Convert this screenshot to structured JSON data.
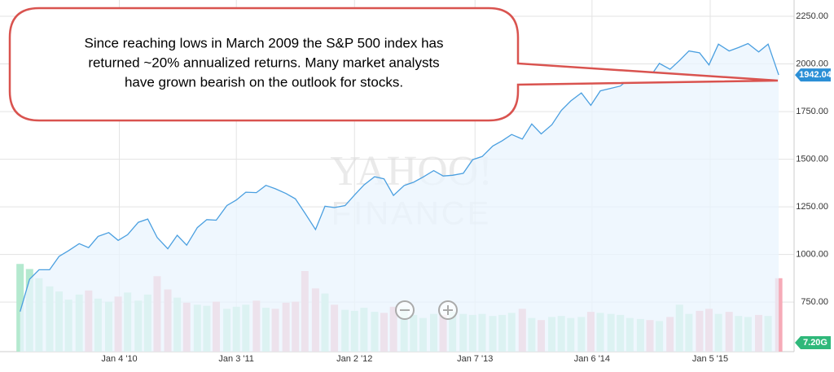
{
  "chart_data": {
    "type": "line",
    "annotation": [
      "Since reaching lows in March 2009 the S&P 500 index has",
      "returned  ~20% annualized returns.  Many market analysts",
      "have grown bearish on the outlook for stocks."
    ],
    "watermark": [
      "YAHOO!",
      "FINANCE"
    ],
    "x": [
      2009.17,
      2009.25,
      2009.33,
      2009.42,
      2009.5,
      2009.58,
      2009.67,
      2009.75,
      2009.83,
      2009.92,
      2010.0,
      2010.08,
      2010.17,
      2010.25,
      2010.33,
      2010.42,
      2010.5,
      2010.58,
      2010.67,
      2010.75,
      2010.83,
      2010.92,
      2011.0,
      2011.08,
      2011.17,
      2011.25,
      2011.33,
      2011.42,
      2011.5,
      2011.58,
      2011.67,
      2011.75,
      2011.83,
      2011.92,
      2012.0,
      2012.08,
      2012.17,
      2012.25,
      2012.33,
      2012.42,
      2012.5,
      2012.58,
      2012.67,
      2012.75,
      2012.83,
      2012.92,
      2013.0,
      2013.08,
      2013.17,
      2013.25,
      2013.33,
      2013.42,
      2013.5,
      2013.58,
      2013.67,
      2013.75,
      2013.83,
      2013.92,
      2014.0,
      2014.08,
      2014.17,
      2014.25,
      2014.33,
      2014.42,
      2014.5,
      2014.58,
      2014.67,
      2014.75,
      2014.83,
      2014.92,
      2015.0,
      2015.08,
      2015.17,
      2015.25,
      2015.33,
      2015.42,
      2015.5,
      2015.59
    ],
    "series": [
      {
        "color": "#4a9fe0",
        "fill": "#e9f4fd",
        "values": [
          700,
          870,
          920,
          920,
          990,
          1020,
          1057,
          1036,
          1095,
          1115,
          1074,
          1104,
          1169,
          1186,
          1089,
          1030,
          1101,
          1049,
          1141,
          1183,
          1180,
          1257,
          1286,
          1327,
          1325,
          1363,
          1345,
          1320,
          1292,
          1218,
          1131,
          1253,
          1246,
          1257,
          1312,
          1365,
          1408,
          1397,
          1310,
          1362,
          1379,
          1406,
          1440,
          1412,
          1416,
          1426,
          1498,
          1514,
          1569,
          1597,
          1630,
          1606,
          1685,
          1633,
          1681,
          1756,
          1806,
          1848,
          1783,
          1859,
          1872,
          1884,
          1924,
          1960,
          1931,
          2003,
          1972,
          2018,
          2068,
          2059,
          1995,
          2104,
          2068,
          2086,
          2107,
          2063,
          2104,
          1942.04
        ]
      }
    ],
    "volume": {
      "up_color": "#b4e9cf",
      "down_color": "#f6abb8",
      "values": [
        8.6,
        8.1,
        7.2,
        6.4,
        5.9,
        5.1,
        5.6,
        6.0,
        5.2,
        4.9,
        5.4,
        5.8,
        5.0,
        5.6,
        7.4,
        6.1,
        5.3,
        4.8,
        4.6,
        4.5,
        4.9,
        4.2,
        4.4,
        4.6,
        5.0,
        4.3,
        4.2,
        4.8,
        4.9,
        7.9,
        6.2,
        5.7,
        4.6,
        4.1,
        4.0,
        4.3,
        3.9,
        3.8,
        4.4,
        4.3,
        3.6,
        3.3,
        3.7,
        3.6,
        3.9,
        3.7,
        3.6,
        3.7,
        3.5,
        3.6,
        3.8,
        4.2,
        3.3,
        3.1,
        3.4,
        3.5,
        3.3,
        3.4,
        3.9,
        3.8,
        3.7,
        3.6,
        3.3,
        3.2,
        3.1,
        3.0,
        3.4,
        4.6,
        3.7,
        4.0,
        4.2,
        3.7,
        3.9,
        3.5,
        3.4,
        3.6,
        3.5,
        7.2
      ]
    },
    "volume_label": "7.20G",
    "y2lim": [
      0,
      34
    ],
    "xlim": [
      2009.0,
      2015.72
    ],
    "xticks": [
      {
        "value": 2010.01,
        "label": "Jan 4 '10"
      },
      {
        "value": 2011.0,
        "label": "Jan 3 '11"
      },
      {
        "value": 2012.0,
        "label": "Jan 2 '12"
      },
      {
        "value": 2013.02,
        "label": "Jan 7 '13"
      },
      {
        "value": 2014.01,
        "label": "Jan 6 '14"
      },
      {
        "value": 2015.01,
        "label": "Jan 5 '15"
      }
    ],
    "ylim": [
      490,
      2310
    ],
    "yticks": [
      {
        "value": 750,
        "label": "750.00"
      },
      {
        "value": 1000,
        "label": "1000.00"
      },
      {
        "value": 1250,
        "label": "1250.00"
      },
      {
        "value": 1500,
        "label": "1500.00"
      },
      {
        "value": 1750,
        "label": "1750.00"
      },
      {
        "value": 2000,
        "label": "2000.00"
      },
      {
        "value": 2250,
        "label": "2250.00"
      }
    ],
    "grid": true
  }
}
